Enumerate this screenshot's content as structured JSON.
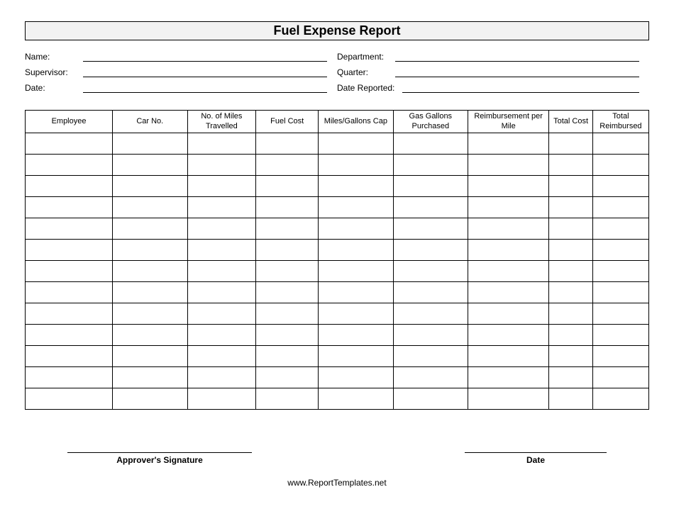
{
  "title": "Fuel Expense Report",
  "fields": {
    "name_label": "Name:",
    "department_label": "Department:",
    "supervisor_label": "Supervisor:",
    "quarter_label": "Quarter:",
    "date_label": "Date:",
    "date_reported_label": "Date Reported:"
  },
  "table": {
    "columns": [
      "Employee",
      "Car No.",
      "No. of Miles Travelled",
      "Fuel Cost",
      "Miles/Gallons Cap",
      "Gas Gallons Purchased",
      "Reimbursement per Mile",
      "Total Cost",
      "Total Reimbursed"
    ],
    "column_widths_pct": [
      14,
      12,
      11,
      10,
      12,
      12,
      13,
      7,
      9
    ],
    "row_count": 13,
    "header_bg": "#ffffff",
    "border_color": "#000000",
    "font_size_pt": 11
  },
  "signatures": {
    "approver_label": "Approver's Signature",
    "date_label": "Date"
  },
  "footer_text": "www.ReportTemplates.net",
  "styling": {
    "title_bg": "#f2f2f2",
    "title_font_size": 18,
    "title_font_weight": "bold",
    "page_bg": "#ffffff",
    "text_color": "#000000",
    "field_font_size": 12,
    "sig_font_size": 12,
    "sig_font_weight": "bold"
  }
}
